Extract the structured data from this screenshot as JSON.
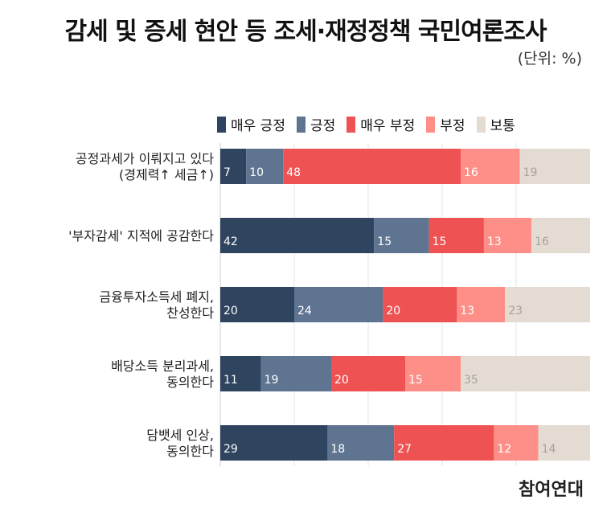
{
  "title": "감세 및 증세 현안 등 조세·재정정책 국민여론조사",
  "unit": "(단위: %)",
  "brand": "참여연대",
  "colors": {
    "매우 긍정": "#2f445e",
    "긍정": "#5f7490",
    "매우 부정": "#ef5253",
    "부정": "#fd8f88",
    "보통": "#e4dcd2",
    "label_light": "#ffffff",
    "label_neutral": "#a9a29a"
  },
  "chart_data": {
    "type": "bar",
    "orientation": "horizontal",
    "stacked": true,
    "categories": [
      [
        "공정과세가 이뤄지고 있다",
        "(경제력↑ 세금↑)"
      ],
      [
        "'부자감세' 지적에 공감한다"
      ],
      [
        "금융투자소득세 폐지,",
        "찬성한다"
      ],
      [
        "배당소득 분리과세,",
        "동의한다"
      ],
      [
        "담뱃세 인상,",
        "동의한다"
      ]
    ],
    "series": [
      {
        "name": "매우 긍정",
        "values": [
          7,
          42,
          20,
          11,
          29
        ]
      },
      {
        "name": "긍정",
        "values": [
          10,
          15,
          24,
          19,
          18
        ]
      },
      {
        "name": "매우 부정",
        "values": [
          48,
          15,
          20,
          20,
          27
        ]
      },
      {
        "name": "부정",
        "values": [
          16,
          13,
          13,
          15,
          12
        ]
      },
      {
        "name": "보통",
        "values": [
          19,
          16,
          23,
          35,
          14
        ]
      }
    ],
    "legend": "top",
    "grid": true
  }
}
